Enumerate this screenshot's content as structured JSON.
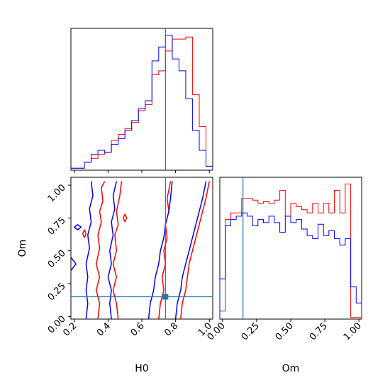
{
  "chart_data": {
    "type": "corner",
    "colors": {
      "series_a": "#ff0000",
      "series_b": "#0000ff",
      "truth": "#1f77b4"
    },
    "truth": {
      "H0": 0.74,
      "Om": 0.15
    },
    "axis_labels": {
      "x_bottom_left": "H0",
      "x_bottom_right": "Om",
      "y_left": "Om"
    },
    "h0_hist": {
      "xlim": [
        0.18,
        1.02
      ],
      "bin_edges": [
        0.18,
        0.22,
        0.26,
        0.3,
        0.34,
        0.38,
        0.42,
        0.46,
        0.5,
        0.54,
        0.58,
        0.62,
        0.66,
        0.7,
        0.74,
        0.78,
        0.82,
        0.86,
        0.9,
        0.94,
        0.98,
        1.02
      ],
      "series": [
        {
          "color_key": "series_a",
          "values": [
            0.01,
            0.01,
            0.04,
            0.06,
            0.08,
            0.09,
            0.15,
            0.18,
            0.21,
            0.24,
            0.3,
            0.33,
            0.48,
            0.5,
            0.6,
            0.66,
            0.66,
            0.67,
            0.38,
            0.22,
            0.02
          ]
        },
        {
          "color_key": "series_b",
          "values": [
            0.01,
            0.01,
            0.04,
            0.08,
            0.1,
            0.09,
            0.13,
            0.16,
            0.2,
            0.25,
            0.31,
            0.35,
            0.55,
            0.62,
            0.68,
            0.56,
            0.5,
            0.36,
            0.2,
            0.1,
            0.02
          ]
        }
      ],
      "ticks": [
        0.2,
        0.4,
        0.6,
        0.8,
        1.0
      ]
    },
    "om_hist": {
      "xlim": [
        -0.02,
        1.02
      ],
      "bin_edges": [
        -0.02,
        0.02,
        0.06,
        0.1,
        0.14,
        0.18,
        0.22,
        0.26,
        0.3,
        0.34,
        0.38,
        0.42,
        0.46,
        0.5,
        0.54,
        0.58,
        0.62,
        0.66,
        0.7,
        0.74,
        0.78,
        0.82,
        0.86,
        0.9,
        0.94,
        0.98,
        1.02
      ],
      "series": [
        {
          "color_key": "series_a",
          "values": [
            0.05,
            0.62,
            0.66,
            0.66,
            0.75,
            0.75,
            0.74,
            0.72,
            0.73,
            0.72,
            0.74,
            0.8,
            0.64,
            0.72,
            0.7,
            0.68,
            0.66,
            0.72,
            0.66,
            0.72,
            0.66,
            0.8,
            0.66,
            0.84,
            0.01,
            0.01
          ]
        },
        {
          "color_key": "series_b",
          "values": [
            0.25,
            0.58,
            0.62,
            0.64,
            0.66,
            0.64,
            0.58,
            0.62,
            0.6,
            0.64,
            0.6,
            0.54,
            0.64,
            0.6,
            0.62,
            0.56,
            0.52,
            0.5,
            0.59,
            0.52,
            0.55,
            0.5,
            0.46,
            0.5,
            0.2,
            0.1
          ]
        }
      ],
      "ticks": [
        0.0,
        0.25,
        0.5,
        0.75,
        1.0
      ],
      "tick_labels": [
        "0.00",
        "0.25",
        "0.50",
        "0.75",
        "1.00"
      ]
    },
    "contour": {
      "xlim": [
        0.18,
        1.02
      ],
      "ylim": [
        -0.02,
        1.06
      ],
      "x_ticks": [
        0.2,
        0.4,
        0.6,
        0.8,
        1.0
      ],
      "x_tick_labels": [
        "0.2",
        "0.4",
        "0.6",
        "0.8",
        "1.0"
      ],
      "y_ticks": [
        0.0,
        0.25,
        0.5,
        0.75,
        1.0
      ],
      "y_tick_labels": [
        "0.00",
        "0.25",
        "0.50",
        "0.75",
        "1.00"
      ],
      "series": [
        {
          "color_key": "series_a",
          "contours": [
            [
              [
                0.34,
                -0.02
              ],
              [
                0.35,
                0.1
              ],
              [
                0.33,
                0.2
              ],
              [
                0.35,
                0.3
              ],
              [
                0.33,
                0.4
              ],
              [
                0.35,
                0.52
              ],
              [
                0.34,
                0.62
              ],
              [
                0.36,
                0.72
              ],
              [
                0.35,
                0.8
              ],
              [
                0.37,
                0.88
              ],
              [
                0.36,
                0.98
              ],
              [
                0.38,
                1.03
              ]
            ],
            [
              [
                0.46,
                -0.02
              ],
              [
                0.45,
                0.1
              ],
              [
                0.43,
                0.2
              ],
              [
                0.45,
                0.3
              ],
              [
                0.43,
                0.4
              ],
              [
                0.45,
                0.5
              ],
              [
                0.44,
                0.62
              ],
              [
                0.46,
                0.7
              ],
              [
                0.45,
                0.8
              ],
              [
                0.47,
                0.92
              ],
              [
                0.48,
                1.03
              ]
            ],
            [
              [
                0.7,
                -0.02
              ],
              [
                0.71,
                0.1
              ],
              [
                0.73,
                0.2
              ],
              [
                0.72,
                0.3
              ],
              [
                0.74,
                0.4
              ],
              [
                0.73,
                0.5
              ],
              [
                0.75,
                0.6
              ],
              [
                0.74,
                0.7
              ],
              [
                0.76,
                0.8
              ],
              [
                0.75,
                0.9
              ],
              [
                0.77,
                1.03
              ]
            ],
            [
              [
                0.83,
                -0.02
              ],
              [
                0.84,
                0.1
              ],
              [
                0.86,
                0.2
              ],
              [
                0.87,
                0.3
              ],
              [
                0.88,
                0.4
              ],
              [
                0.9,
                0.5
              ],
              [
                0.92,
                0.6
              ],
              [
                0.94,
                0.7
              ],
              [
                0.96,
                0.8
              ],
              [
                0.98,
                0.9
              ],
              [
                1.0,
                1.03
              ]
            ],
            [
              [
                0.26,
                0.6
              ],
              [
                0.27,
                0.63
              ],
              [
                0.26,
                0.66
              ],
              [
                0.25,
                0.63
              ],
              [
                0.26,
                0.6
              ]
            ],
            [
              [
                0.5,
                0.72
              ],
              [
                0.51,
                0.75
              ],
              [
                0.5,
                0.78
              ],
              [
                0.49,
                0.75
              ],
              [
                0.5,
                0.72
              ]
            ]
          ]
        },
        {
          "color_key": "series_b",
          "contours": [
            [
              [
                0.27,
                -0.02
              ],
              [
                0.28,
                0.1
              ],
              [
                0.27,
                0.2
              ],
              [
                0.28,
                0.3
              ],
              [
                0.27,
                0.4
              ],
              [
                0.29,
                0.52
              ],
              [
                0.28,
                0.62
              ],
              [
                0.3,
                0.72
              ],
              [
                0.29,
                0.82
              ],
              [
                0.31,
                0.92
              ],
              [
                0.3,
                1.03
              ]
            ],
            [
              [
                0.42,
                -0.02
              ],
              [
                0.41,
                0.1
              ],
              [
                0.42,
                0.2
              ],
              [
                0.4,
                0.3
              ],
              [
                0.42,
                0.4
              ],
              [
                0.41,
                0.5
              ],
              [
                0.43,
                0.62
              ],
              [
                0.42,
                0.72
              ],
              [
                0.44,
                0.82
              ],
              [
                0.43,
                0.92
              ],
              [
                0.45,
                1.03
              ]
            ],
            [
              [
                0.64,
                -0.02
              ],
              [
                0.65,
                0.1
              ],
              [
                0.67,
                0.2
              ],
              [
                0.68,
                0.3
              ],
              [
                0.7,
                0.4
              ],
              [
                0.71,
                0.5
              ],
              [
                0.73,
                0.6
              ],
              [
                0.74,
                0.7
              ],
              [
                0.76,
                0.8
              ],
              [
                0.77,
                0.9
              ],
              [
                0.78,
                1.03
              ]
            ],
            [
              [
                0.8,
                -0.02
              ],
              [
                0.81,
                0.1
              ],
              [
                0.83,
                0.2
              ],
              [
                0.84,
                0.3
              ],
              [
                0.86,
                0.4
              ],
              [
                0.88,
                0.5
              ],
              [
                0.9,
                0.6
              ],
              [
                0.92,
                0.7
              ],
              [
                0.94,
                0.8
              ],
              [
                0.96,
                0.9
              ],
              [
                0.98,
                1.03
              ]
            ],
            [
              [
                0.22,
                0.66
              ],
              [
                0.24,
                0.68
              ],
              [
                0.22,
                0.7
              ],
              [
                0.2,
                0.68
              ],
              [
                0.22,
                0.66
              ]
            ],
            [
              [
                0.18,
                0.35
              ],
              [
                0.21,
                0.4
              ],
              [
                0.18,
                0.45
              ]
            ]
          ]
        }
      ]
    }
  }
}
